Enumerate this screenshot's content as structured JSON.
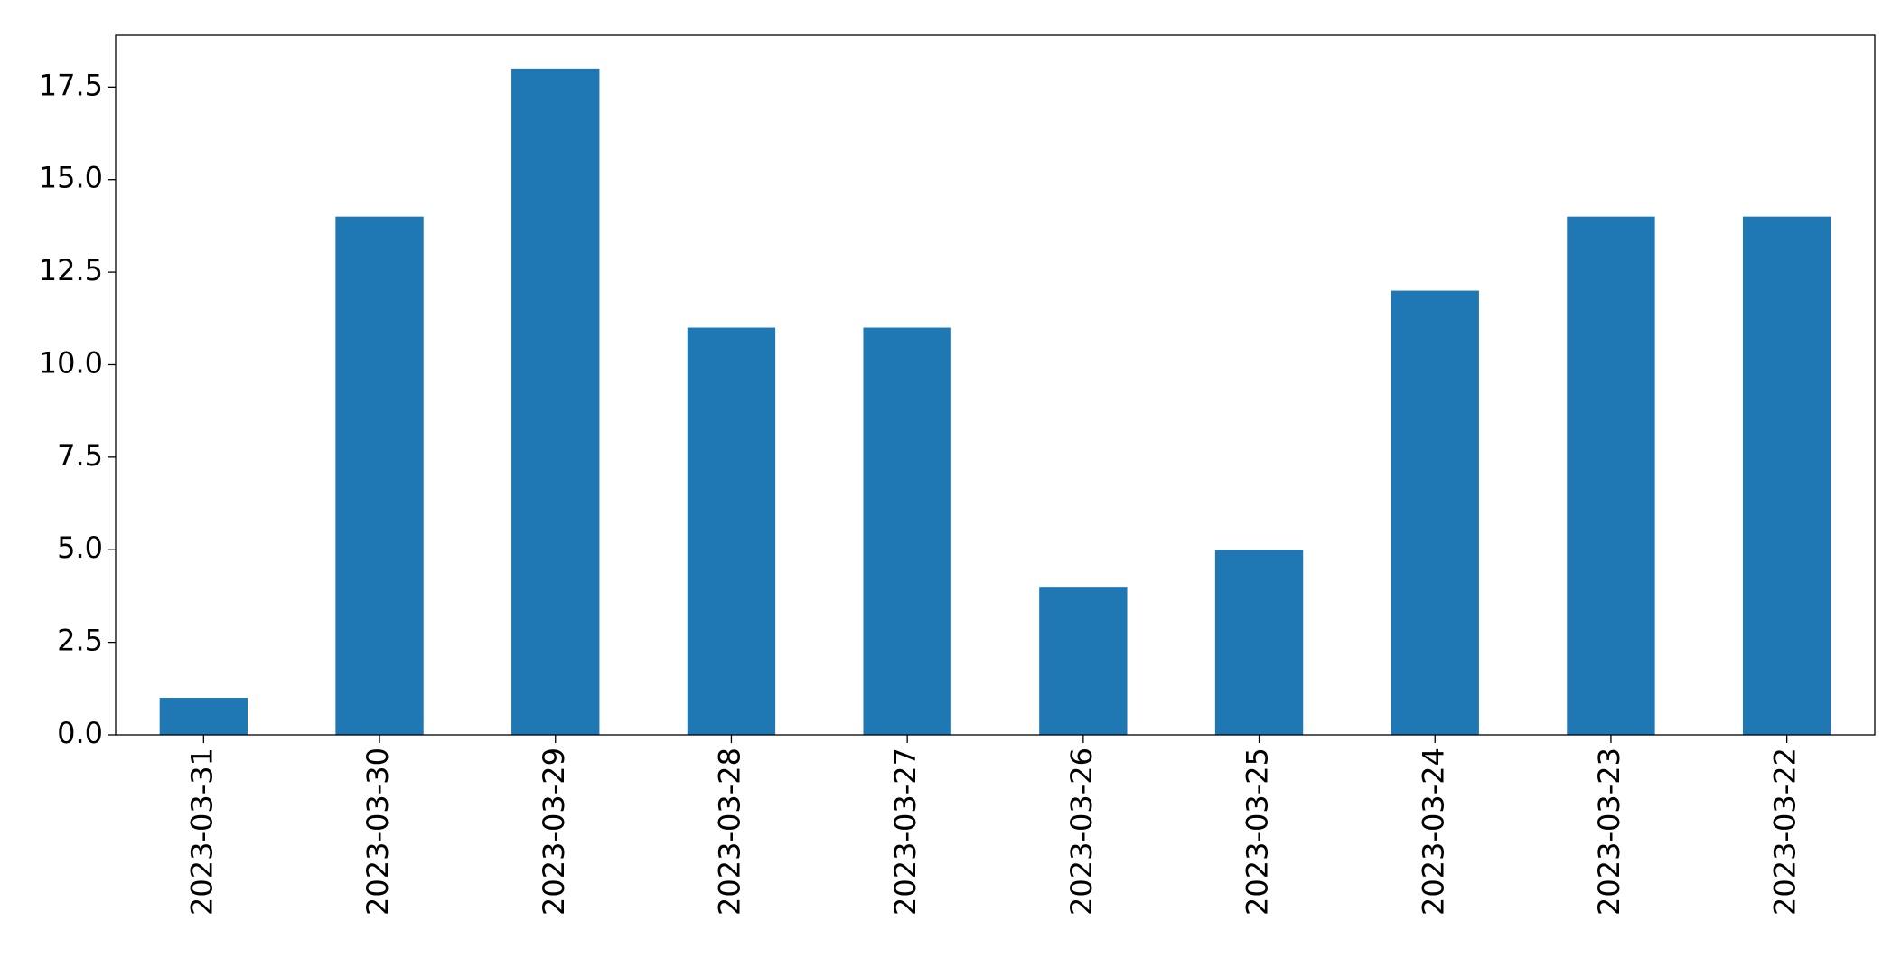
{
  "chart_data": {
    "type": "bar",
    "categories": [
      "2023-03-31",
      "2023-03-30",
      "2023-03-29",
      "2023-03-28",
      "2023-03-27",
      "2023-03-26",
      "2023-03-25",
      "2023-03-24",
      "2023-03-23",
      "2023-03-22"
    ],
    "values": [
      1,
      14,
      18,
      11,
      11,
      4,
      5,
      12,
      14,
      14
    ],
    "color": "#1f77b4",
    "ylim": [
      0,
      18.9
    ],
    "yticks": [
      {
        "value": 0,
        "label": "0.0"
      },
      2.5,
      {
        "value": 5,
        "label": "5.0"
      },
      7.5,
      {
        "value": 10,
        "label": "10.0"
      },
      12.5,
      {
        "value": 15,
        "label": "15.0"
      },
      17.5
    ],
    "grid": false
  }
}
